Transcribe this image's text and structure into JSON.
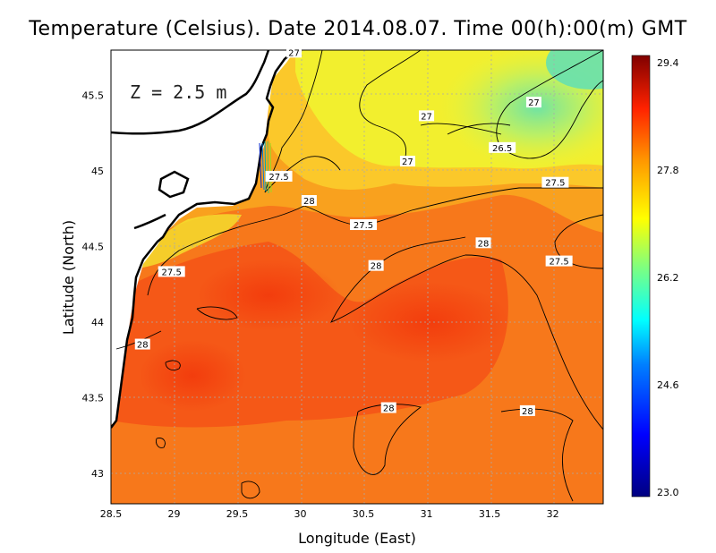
{
  "title": "Temperature (Celsius). Date 2014.08.07. Time 00(h):00(m)  GMT",
  "chart_data": {
    "type": "heatmap",
    "title": "Temperature (Celsius). Date 2014.08.07. Time 00(h):00(m)  GMT",
    "xlabel": "Longitude (East)",
    "ylabel": "Latitude (North)",
    "xlim": [
      28.5,
      32.4
    ],
    "ylim": [
      42.8,
      45.8
    ],
    "x_ticks": [
      "28.5",
      "29",
      "29.5",
      "30",
      "30.5",
      "31",
      "31.5",
      "32"
    ],
    "y_ticks": [
      "43",
      "43.5",
      "44",
      "44.5",
      "45",
      "45.5"
    ],
    "grid": true,
    "colorbar": {
      "min": 23.0,
      "max": 29.4,
      "tick_labels": [
        "29.4",
        "27.8",
        "26.2",
        "24.6",
        "23.0"
      ],
      "colors": [
        "#000080",
        "#0000ff",
        "#00ffff",
        "#7fff7f",
        "#ffff00",
        "#ff9900",
        "#ff3300",
        "#800000"
      ]
    },
    "depth_label": "Z = 2.5 m",
    "contour_labels": [
      {
        "text": "27",
        "lon": 29.95,
        "lat": 45.78
      },
      {
        "text": "27",
        "lon": 31.0,
        "lat": 45.36
      },
      {
        "text": "27",
        "lon": 31.85,
        "lat": 45.45
      },
      {
        "text": "27",
        "lon": 30.85,
        "lat": 45.06
      },
      {
        "text": "26.5",
        "lon": 31.6,
        "lat": 45.15
      },
      {
        "text": "27.5",
        "lon": 29.83,
        "lat": 44.96
      },
      {
        "text": "27.5",
        "lon": 32.02,
        "lat": 44.92
      },
      {
        "text": "27.5",
        "lon": 30.5,
        "lat": 44.64
      },
      {
        "text": "27.5",
        "lon": 32.05,
        "lat": 44.4
      },
      {
        "text": "27.5",
        "lon": 28.98,
        "lat": 44.33
      },
      {
        "text": "28",
        "lon": 30.07,
        "lat": 44.8
      },
      {
        "text": "28",
        "lon": 31.45,
        "lat": 44.52
      },
      {
        "text": "28",
        "lon": 30.6,
        "lat": 44.37
      },
      {
        "text": "28",
        "lon": 28.75,
        "lat": 43.85
      },
      {
        "text": "28",
        "lon": 30.7,
        "lat": 43.43
      },
      {
        "text": "28",
        "lon": 31.8,
        "lat": 43.41
      }
    ]
  }
}
